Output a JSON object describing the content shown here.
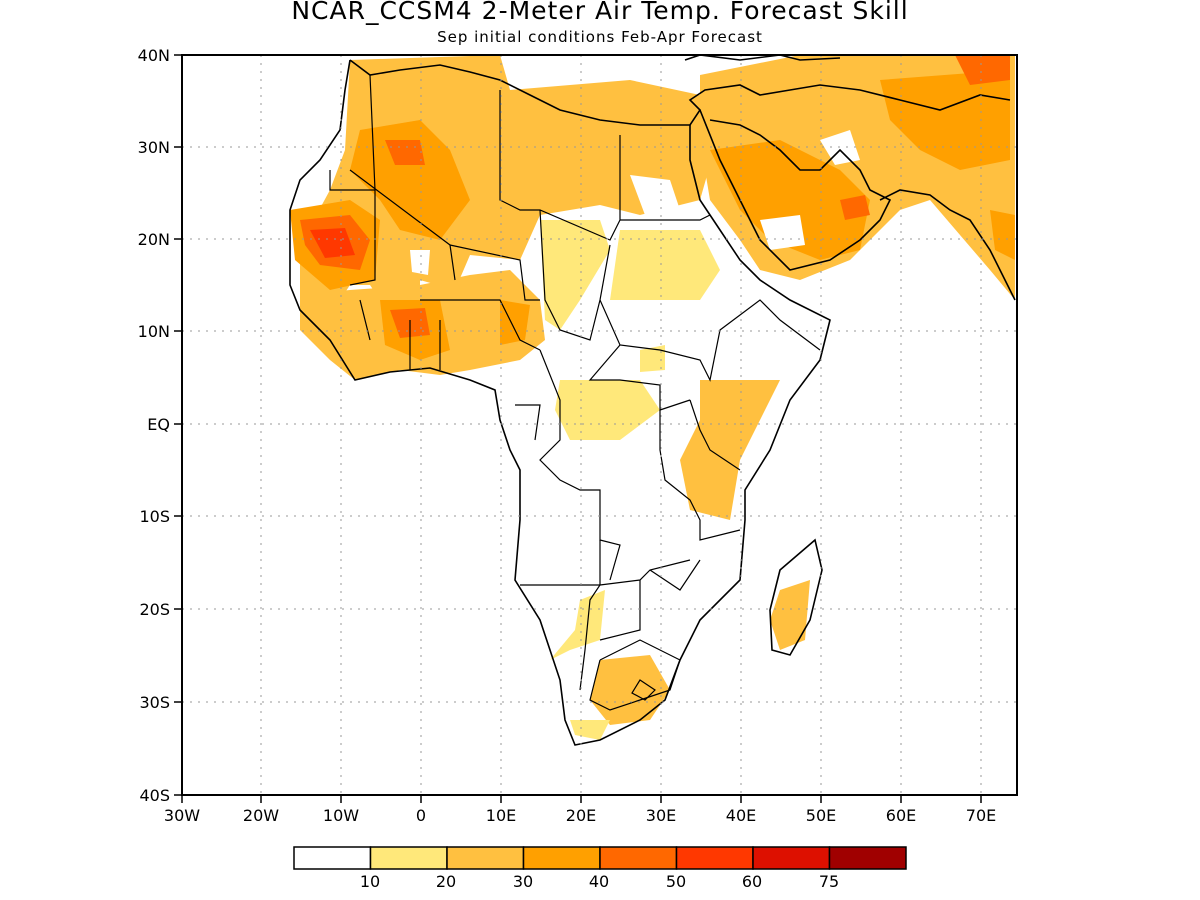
{
  "title": "NCAR_CCSM4 2-Meter Air Temp. Forecast Skill",
  "subtitle": "Sep initial conditions  Feb-Apr Forecast",
  "map": {
    "lon_range": [
      -30,
      75
    ],
    "lat_range": [
      -40,
      40
    ],
    "grid": "dotted",
    "lon_ticks": [
      "30W",
      "20W",
      "10W",
      "0",
      "10E",
      "20E",
      "30E",
      "40E",
      "50E",
      "60E",
      "70E"
    ],
    "lat_ticks": [
      "40N",
      "30N",
      "20N",
      "10N",
      "EQ",
      "10S",
      "20S",
      "30S",
      "40S"
    ]
  },
  "colorbar": {
    "colors": [
      "#ffffff",
      "#ffe87a",
      "#ffc040",
      "#ffa000",
      "#ff6800",
      "#ff3800",
      "#dd1000",
      "#a00000"
    ],
    "labels": [
      "10",
      "20",
      "30",
      "40",
      "50",
      "60",
      "75"
    ]
  }
}
